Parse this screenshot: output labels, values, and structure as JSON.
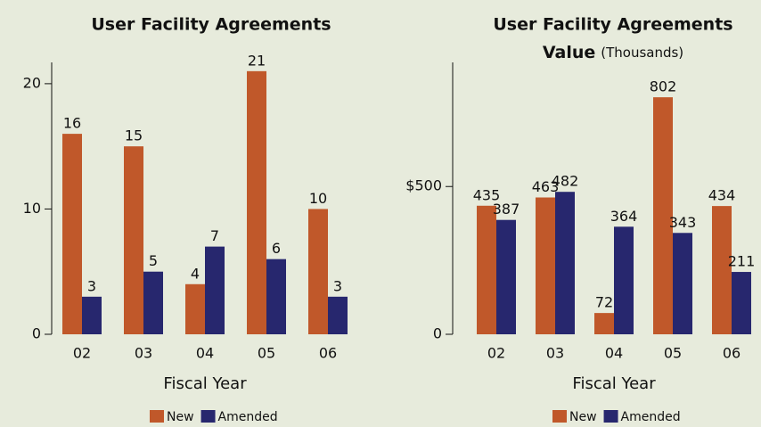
{
  "chart_data": [
    {
      "type": "bar",
      "title": "User Facility Agreements",
      "x_label": "Fiscal Year",
      "categories": [
        "02",
        "03",
        "04",
        "05",
        "06"
      ],
      "series": [
        {
          "name": "New",
          "color": "#c0582a",
          "values": [
            16,
            15,
            4,
            21,
            10
          ]
        },
        {
          "name": "Amended",
          "color": "#27276e",
          "values": [
            3,
            5,
            7,
            6,
            3
          ]
        }
      ],
      "ylim": [
        0,
        21.7
      ],
      "yticks": [
        0,
        10,
        20
      ],
      "legend": "bottom"
    },
    {
      "type": "bar",
      "title": "User Facility Agreements",
      "title_line2": "Value",
      "title_note": "(Thousands)",
      "x_label": "Fiscal Year",
      "categories": [
        "02",
        "03",
        "04",
        "05",
        "06"
      ],
      "series": [
        {
          "name": "New",
          "color": "#c0582a",
          "values": [
            435,
            463,
            72,
            802,
            434
          ]
        },
        {
          "name": "Amended",
          "color": "#27276e",
          "values": [
            387,
            482,
            364,
            343,
            211
          ]
        }
      ],
      "ylim": [
        0,
        920
      ],
      "yticks": [
        0,
        {
          "value": 500,
          "label": "$500"
        }
      ],
      "legend": "bottom"
    }
  ]
}
